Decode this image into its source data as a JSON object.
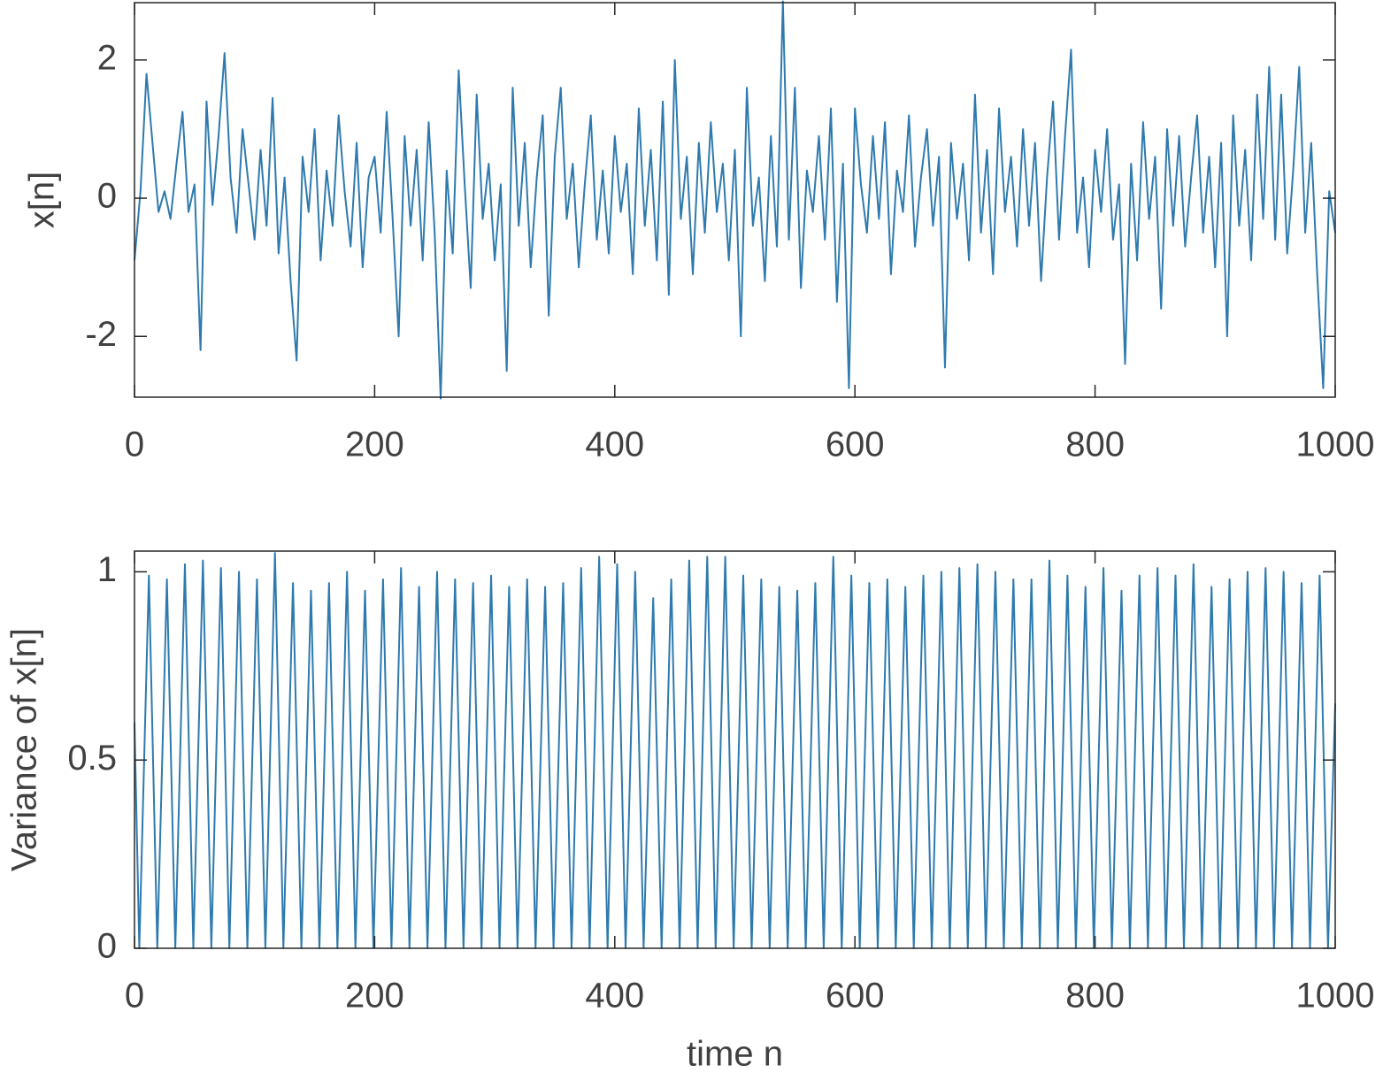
{
  "chart_data": [
    {
      "type": "line",
      "ylabel": "x[n]",
      "color": "#2e7aae",
      "xlim": [
        0,
        1000
      ],
      "ylim": [
        -2.88,
        2.83
      ],
      "xticks": [
        0,
        200,
        400,
        600,
        800,
        1000
      ],
      "yticks": [
        -2,
        0,
        2
      ],
      "x": [
        0,
        5,
        10,
        15,
        20,
        25,
        30,
        35,
        40,
        45,
        50,
        55,
        60,
        65,
        70,
        75,
        80,
        85,
        90,
        95,
        100,
        105,
        110,
        115,
        120,
        125,
        130,
        135,
        140,
        145,
        150,
        155,
        160,
        165,
        170,
        175,
        180,
        185,
        190,
        195,
        200,
        205,
        210,
        215,
        220,
        225,
        230,
        235,
        240,
        245,
        250,
        255,
        260,
        265,
        270,
        275,
        280,
        285,
        290,
        295,
        300,
        305,
        310,
        315,
        320,
        325,
        330,
        335,
        340,
        345,
        350,
        355,
        360,
        365,
        370,
        375,
        380,
        385,
        390,
        395,
        400,
        405,
        410,
        415,
        420,
        425,
        430,
        435,
        440,
        445,
        450,
        455,
        460,
        465,
        470,
        475,
        480,
        485,
        490,
        495,
        500,
        505,
        510,
        515,
        520,
        525,
        530,
        535,
        540,
        545,
        550,
        555,
        560,
        565,
        570,
        575,
        580,
        585,
        590,
        595,
        600,
        605,
        610,
        615,
        620,
        625,
        630,
        635,
        640,
        645,
        650,
        655,
        660,
        665,
        670,
        675,
        680,
        685,
        690,
        695,
        700,
        705,
        710,
        715,
        720,
        725,
        730,
        735,
        740,
        745,
        750,
        755,
        760,
        765,
        770,
        775,
        780,
        785,
        790,
        795,
        800,
        805,
        810,
        815,
        820,
        825,
        830,
        835,
        840,
        845,
        850,
        855,
        860,
        865,
        870,
        875,
        880,
        885,
        890,
        895,
        900,
        905,
        910,
        915,
        920,
        925,
        930,
        935,
        940,
        945,
        950,
        955,
        960,
        965,
        970,
        975,
        980,
        985,
        990,
        995,
        1000
      ],
      "values": [
        -0.9,
        0.1,
        1.8,
        0.8,
        -0.2,
        0.1,
        -0.3,
        0.5,
        1.25,
        -0.2,
        0.2,
        -2.2,
        1.4,
        -0.1,
        0.9,
        2.1,
        0.3,
        -0.5,
        1.0,
        0.2,
        -0.6,
        0.7,
        -0.4,
        1.45,
        -0.8,
        0.3,
        -1.2,
        -2.35,
        0.6,
        -0.2,
        1.0,
        -0.9,
        0.4,
        -0.4,
        1.2,
        0.1,
        -0.7,
        0.8,
        -1.0,
        0.3,
        0.6,
        -0.5,
        1.25,
        -0.3,
        -2.0,
        0.9,
        -0.4,
        0.7,
        -0.9,
        1.1,
        -0.5,
        -2.9,
        0.4,
        -0.8,
        1.85,
        0.2,
        -1.3,
        1.5,
        -0.3,
        0.5,
        -0.9,
        0.2,
        -2.5,
        1.6,
        -0.4,
        0.8,
        -1.0,
        0.3,
        1.2,
        -1.7,
        0.6,
        1.6,
        -0.3,
        0.5,
        -1.0,
        0.2,
        1.2,
        -0.6,
        0.4,
        -0.8,
        0.9,
        -0.2,
        0.5,
        -1.1,
        1.3,
        -0.4,
        0.7,
        -0.9,
        1.4,
        -1.4,
        2.0,
        -0.3,
        0.6,
        -1.1,
        0.8,
        -0.5,
        1.1,
        -0.2,
        0.5,
        -0.9,
        0.7,
        -2.0,
        1.6,
        -0.4,
        0.3,
        -1.2,
        0.9,
        -0.7,
        2.85,
        -0.6,
        1.6,
        -1.3,
        0.4,
        -0.2,
        0.9,
        -0.6,
        1.3,
        -1.5,
        0.5,
        -2.75,
        1.3,
        0.2,
        -0.5,
        0.9,
        -0.3,
        1.1,
        -1.1,
        0.4,
        -0.2,
        1.2,
        -0.7,
        0.3,
        1.0,
        -0.4,
        0.6,
        -2.45,
        0.8,
        -0.3,
        0.5,
        -0.9,
        1.5,
        -0.5,
        0.7,
        -1.1,
        1.3,
        -0.2,
        0.6,
        -0.7,
        1.0,
        -0.4,
        0.8,
        -1.2,
        0.3,
        1.4,
        -0.6,
        0.9,
        2.15,
        -0.5,
        0.3,
        -1.0,
        0.7,
        -0.2,
        1.0,
        -0.6,
        0.2,
        -2.4,
        0.5,
        -0.9,
        1.1,
        -0.3,
        0.6,
        -1.6,
        1.0,
        -0.4,
        0.9,
        -0.7,
        0.3,
        1.2,
        -0.5,
        0.6,
        -1.0,
        0.8,
        -2.0,
        1.2,
        -0.4,
        0.7,
        -0.9,
        1.5,
        -0.3,
        1.9,
        -0.6,
        1.5,
        -0.8,
        0.4,
        1.9,
        -0.5,
        0.8,
        -1.1,
        -2.75,
        0.1,
        -0.5
      ]
    },
    {
      "type": "line",
      "ylabel": "Variance of x[n]",
      "xlabel": "time n",
      "color": "#2e7aae",
      "xlim": [
        0,
        1000
      ],
      "ylim": [
        0,
        1.055
      ],
      "xticks": [
        0,
        200,
        400,
        600,
        800,
        1000
      ],
      "yticks": [
        0,
        0.5,
        1
      ],
      "x": [
        0,
        4,
        12,
        19,
        27,
        34,
        42,
        49,
        57,
        64,
        72,
        79,
        87,
        94,
        102,
        109,
        117,
        124,
        132,
        139,
        147,
        154,
        162,
        169,
        177,
        184,
        192,
        199,
        207,
        214,
        222,
        229,
        237,
        244,
        252,
        259,
        267,
        274,
        282,
        289,
        297,
        304,
        312,
        319,
        327,
        334,
        342,
        349,
        357,
        364,
        372,
        379,
        387,
        394,
        402,
        409,
        417,
        424,
        432,
        439,
        447,
        454,
        462,
        469,
        477,
        484,
        492,
        499,
        507,
        514,
        522,
        529,
        537,
        544,
        552,
        559,
        567,
        574,
        582,
        589,
        597,
        604,
        612,
        619,
        627,
        634,
        642,
        649,
        657,
        664,
        672,
        679,
        687,
        694,
        702,
        709,
        717,
        724,
        732,
        739,
        747,
        754,
        762,
        769,
        777,
        784,
        792,
        799,
        807,
        814,
        822,
        829,
        837,
        844,
        852,
        859,
        867,
        874,
        882,
        889,
        897,
        904,
        912,
        919,
        927,
        934,
        942,
        949,
        957,
        964,
        972,
        979,
        987,
        994,
        1000
      ],
      "values": [
        0.6,
        0,
        0.99,
        0,
        0.98,
        0,
        1.02,
        0,
        1.03,
        0,
        1.01,
        0,
        1.0,
        0,
        0.98,
        0,
        1.05,
        0,
        0.97,
        0,
        0.95,
        0,
        0.97,
        0,
        1.0,
        0,
        0.95,
        0,
        0.98,
        0,
        1.01,
        0,
        0.96,
        0,
        1.0,
        0,
        0.98,
        0,
        0.97,
        0,
        0.99,
        0,
        0.96,
        0,
        0.98,
        0,
        0.96,
        0,
        0.97,
        0,
        1.01,
        0,
        1.04,
        0,
        1.02,
        0,
        1.0,
        0,
        0.93,
        0,
        0.98,
        0,
        1.03,
        0,
        1.04,
        0,
        1.04,
        0,
        0.99,
        0,
        0.98,
        0,
        0.96,
        0,
        0.95,
        0,
        0.97,
        0,
        1.04,
        0,
        0.99,
        0,
        0.97,
        0,
        0.98,
        0,
        0.96,
        0,
        0.99,
        0,
        1.0,
        0,
        1.01,
        0,
        1.02,
        0,
        1.0,
        0,
        0.98,
        0,
        0.98,
        0,
        1.03,
        0,
        0.99,
        0,
        0.96,
        0,
        1.01,
        0,
        0.95,
        0,
        0.99,
        0,
        1.01,
        0,
        0.99,
        0,
        1.02,
        0,
        0.96,
        0,
        0.98,
        0,
        1.0,
        0,
        1.01,
        0,
        1.0,
        0,
        0.97,
        0,
        0.99,
        0,
        0.65
      ]
    }
  ]
}
